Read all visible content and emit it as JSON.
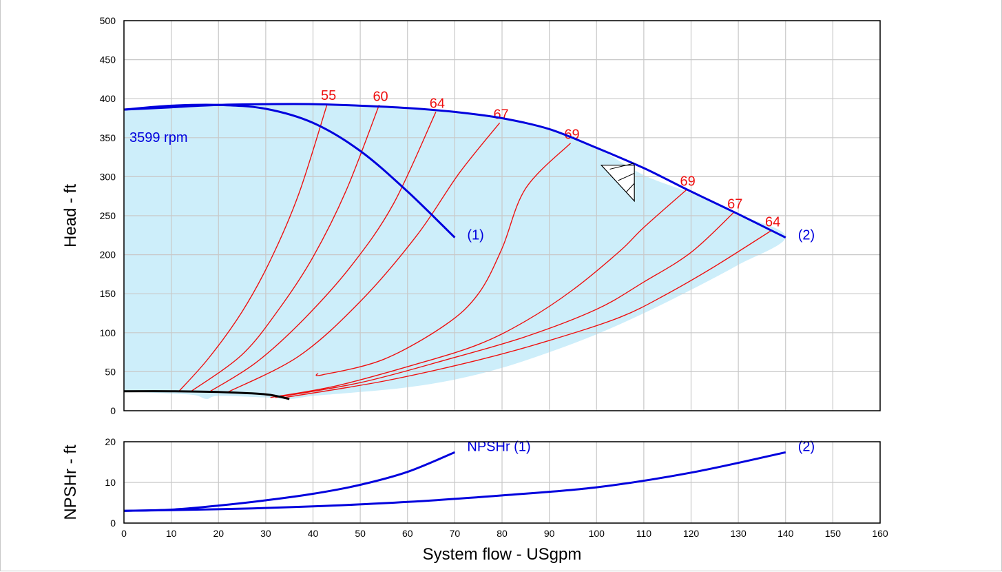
{
  "chart_data": [
    {
      "type": "line",
      "title": "",
      "xlabel": "",
      "ylabel": "Head - ft",
      "xlim": [
        0,
        160
      ],
      "ylim": [
        0,
        500
      ],
      "x_ticks": [
        0,
        10,
        20,
        30,
        40,
        50,
        60,
        70,
        80,
        90,
        100,
        110,
        120,
        130,
        140,
        150,
        160
      ],
      "y_ticks": [
        0,
        50,
        100,
        150,
        200,
        250,
        300,
        350,
        400,
        450,
        500
      ],
      "grid": true,
      "colors": {
        "pump_curve": "#0000dd",
        "efficiency": "#ee1111",
        "region_fill": "#cdeefa",
        "min_diameter": "#000000",
        "annotation": "#0000dd"
      },
      "speed_label": "3599 rpm",
      "operating_region": [
        [
          0,
          386
        ],
        [
          5,
          389
        ],
        [
          10,
          391
        ],
        [
          20,
          393
        ],
        [
          40,
          393
        ],
        [
          50,
          391
        ],
        [
          60,
          388
        ],
        [
          70,
          383
        ],
        [
          80,
          375
        ],
        [
          90,
          361
        ],
        [
          100,
          337
        ],
        [
          110,
          302
        ],
        [
          120,
          279
        ],
        [
          130,
          252
        ],
        [
          140,
          223
        ],
        [
          130,
          187
        ],
        [
          120,
          155
        ],
        [
          110,
          125
        ],
        [
          100,
          98
        ],
        [
          90,
          75
        ],
        [
          80,
          55
        ],
        [
          70,
          40
        ],
        [
          60,
          30
        ],
        [
          50,
          24
        ],
        [
          40,
          19
        ],
        [
          35,
          15
        ],
        [
          30,
          17
        ],
        [
          20,
          19
        ],
        [
          17.5,
          15
        ],
        [
          15,
          20
        ],
        [
          10,
          22
        ],
        [
          0,
          25
        ]
      ],
      "series": [
        {
          "name": "(1)",
          "points": [
            [
              0,
              386
            ],
            [
              10,
              391
            ],
            [
              20,
              392
            ],
            [
              30,
              387
            ],
            [
              40,
              369
            ],
            [
              50,
              333
            ],
            [
              60,
              281
            ],
            [
              70,
              222
            ]
          ]
        },
        {
          "name": "(2)",
          "points": [
            [
              0,
              386
            ],
            [
              10,
              389
            ],
            [
              20,
              392
            ],
            [
              30,
              393
            ],
            [
              40,
              393
            ],
            [
              50,
              391
            ],
            [
              60,
              388
            ],
            [
              70,
              383
            ],
            [
              80,
              375
            ],
            [
              90,
              361
            ],
            [
              100,
              337
            ],
            [
              110,
              311
            ],
            [
              120,
              281
            ],
            [
              130,
              252
            ],
            [
              140,
              222
            ]
          ]
        }
      ],
      "min_diameter_curve": [
        [
          0,
          25
        ],
        [
          10,
          25
        ],
        [
          20,
          24
        ],
        [
          30,
          21
        ],
        [
          35,
          15
        ]
      ],
      "efficiency_curves": [
        {
          "label": "55",
          "points": [
            [
              11.5,
              24
            ],
            [
              18,
              68
            ],
            [
              25,
              127
            ],
            [
              31,
              193
            ],
            [
              37,
              278
            ],
            [
              43,
              393
            ]
          ]
        },
        {
          "label": "60",
          "points": [
            [
              14,
              24
            ],
            [
              25,
              72
            ],
            [
              33,
              132
            ],
            [
              40,
              197
            ],
            [
              47,
              282
            ],
            [
              54,
              392
            ]
          ]
        },
        {
          "label": "64",
          "points": [
            [
              18,
              24
            ],
            [
              28,
              62
            ],
            [
              38,
              117
            ],
            [
              48,
              185
            ],
            [
              57,
              265
            ],
            [
              66,
              383
            ]
          ]
        },
        {
          "label": "67",
          "points": [
            [
              22,
              24
            ],
            [
              37,
              70
            ],
            [
              50,
              140
            ],
            [
              62,
              225
            ],
            [
              71,
              305
            ],
            [
              79.5,
              369
            ]
          ]
        },
        {
          "label": "69",
          "points": [
            [
              41,
              48
            ],
            [
              42,
              46
            ],
            [
              55,
              66
            ],
            [
              68,
              110
            ],
            [
              75,
              150
            ],
            [
              80,
              208
            ],
            [
              85,
              285
            ],
            [
              94.5,
              343
            ]
          ]
        },
        {
          "label": "69",
          "points": [
            [
              31,
              17
            ],
            [
              45,
              32
            ],
            [
              62,
              60
            ],
            [
              75,
              85
            ],
            [
              85,
              115
            ],
            [
              95,
              155
            ],
            [
              105,
              205
            ],
            [
              110,
              235
            ],
            [
              119,
              283
            ]
          ]
        },
        {
          "label": "67",
          "points": [
            [
              32,
              17
            ],
            [
              50,
              36
            ],
            [
              68,
              65
            ],
            [
              85,
              95
            ],
            [
              100,
              130
            ],
            [
              110,
              165
            ],
            [
              120,
              203
            ],
            [
              129,
              254
            ]
          ]
        },
        {
          "label": "64",
          "points": [
            [
              34,
              17
            ],
            [
              55,
              38
            ],
            [
              75,
              65
            ],
            [
              90,
              90
            ],
            [
              105,
              120
            ],
            [
              115,
              150
            ],
            [
              125,
              185
            ],
            [
              137,
              231
            ]
          ]
        }
      ],
      "annotations": [
        "(1)",
        "(2)"
      ]
    },
    {
      "type": "line",
      "title": "",
      "xlabel": "System flow - USgpm",
      "ylabel": "NPSHr - ft",
      "xlim": [
        0,
        160
      ],
      "ylim": [
        0,
        20
      ],
      "x_ticks": [
        0,
        10,
        20,
        30,
        40,
        50,
        60,
        70,
        80,
        90,
        100,
        110,
        120,
        130,
        140,
        150,
        160
      ],
      "y_ticks": [
        0,
        10,
        20
      ],
      "grid": true,
      "series": [
        {
          "name": "NPSHr (1)",
          "points": [
            [
              0,
              3
            ],
            [
              10,
              3.3
            ],
            [
              20,
              4.3
            ],
            [
              30,
              5.6
            ],
            [
              40,
              7.2
            ],
            [
              50,
              9.4
            ],
            [
              60,
              12.6
            ],
            [
              70,
              17.4
            ]
          ]
        },
        {
          "name": "(2)",
          "points": [
            [
              0,
              3
            ],
            [
              20,
              3.4
            ],
            [
              40,
              4.1
            ],
            [
              60,
              5.2
            ],
            [
              80,
              6.8
            ],
            [
              100,
              8.8
            ],
            [
              120,
              12.4
            ],
            [
              140,
              17.4
            ]
          ]
        }
      ]
    }
  ]
}
